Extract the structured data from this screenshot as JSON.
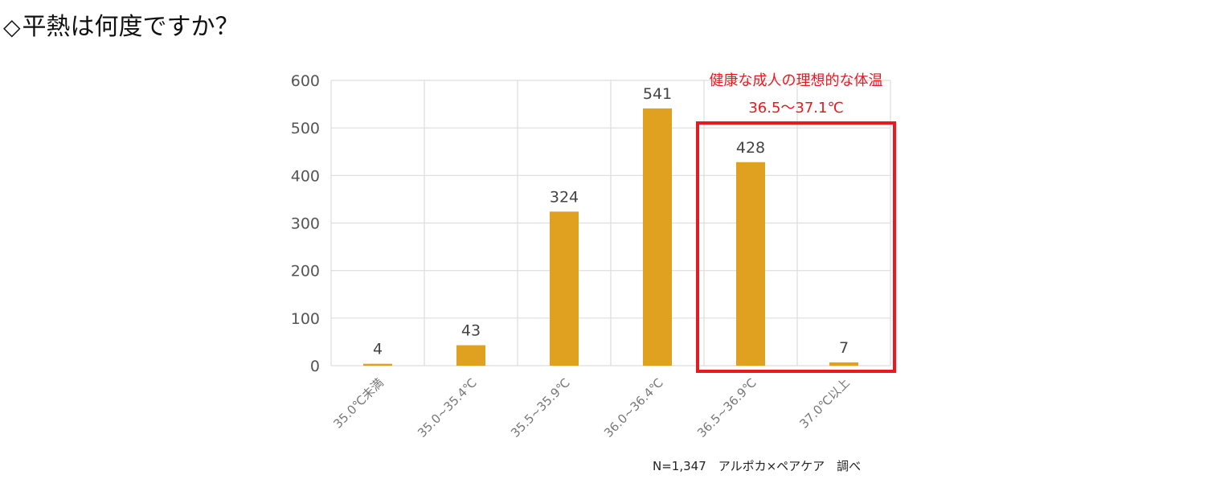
{
  "page": {
    "title_mark": "◇",
    "title": "平熱は何度ですか？"
  },
  "colors": {
    "bar": "#E0A020",
    "grid": "#DDDDDD",
    "highlight": "#E8191F",
    "axis_text": "#555555"
  },
  "chart_data": {
    "type": "bar",
    "title": "平熱は何度ですか？",
    "categories": [
      "35.0℃未満",
      "35.0~35.4℃",
      "35.5~35.9℃",
      "36.0~36.4℃",
      "36.5~36.9℃",
      "37.0℃以上"
    ],
    "values": [
      4,
      43,
      324,
      541,
      428,
      7
    ],
    "ylim": [
      0,
      600
    ],
    "yticks": [
      0,
      100,
      200,
      300,
      400,
      500,
      600
    ],
    "grid": true,
    "legend": "none",
    "annotation": {
      "line1": "健康な成人の理想的な体温",
      "line2": "36.5～37.1℃",
      "highlight_categories": [
        4,
        5
      ]
    },
    "source_note": "N=1,347　アルポカ×ペアケア　調べ"
  }
}
